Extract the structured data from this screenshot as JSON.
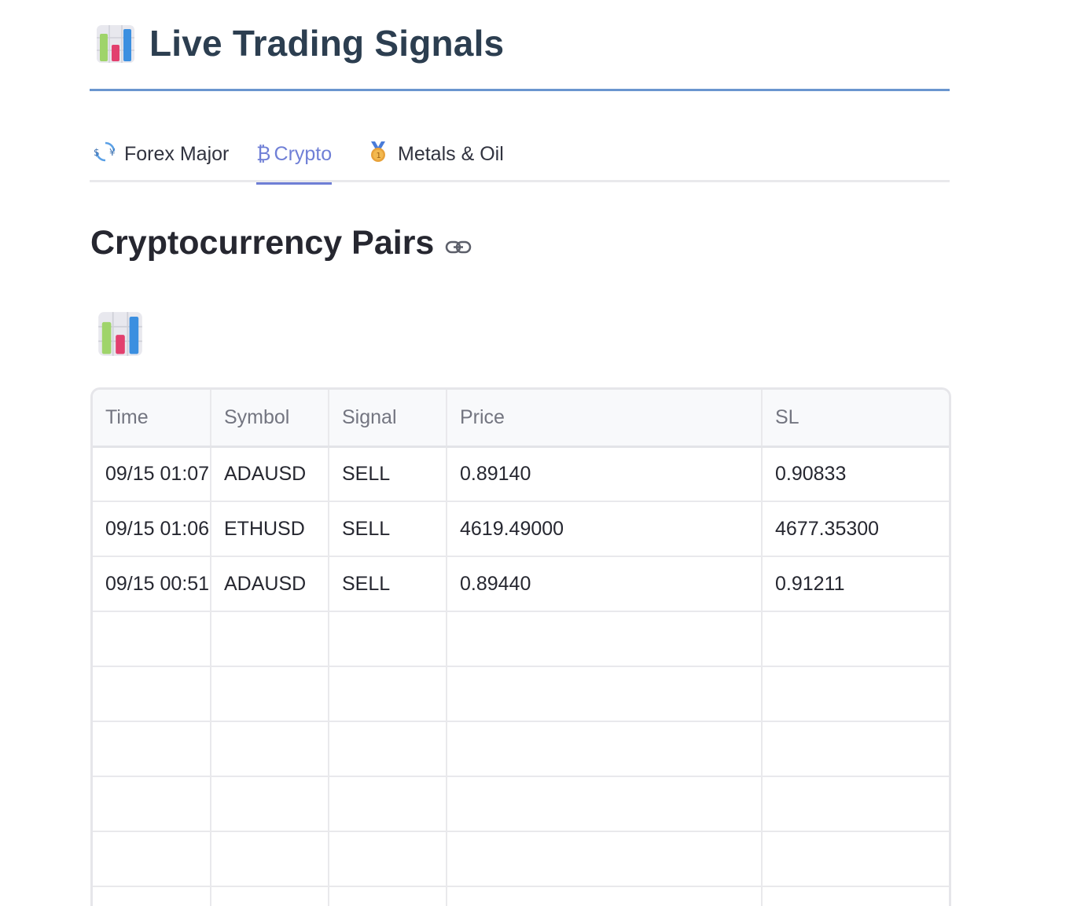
{
  "header": {
    "icon": "bar-chart-emoji",
    "title": "Live Trading Signals"
  },
  "tabs": [
    {
      "icon": "currency-exchange-icon",
      "icon_glyph": "💱",
      "label": "Forex Major",
      "active": false
    },
    {
      "icon": "bitcoin-icon",
      "icon_glyph": "₿",
      "label": "Crypto",
      "active": true
    },
    {
      "icon": "medal-icon",
      "icon_glyph": "🥇",
      "label": "Metals & Oil",
      "active": false
    }
  ],
  "section": {
    "title": "Cryptocurrency Pairs",
    "anchor_icon": "link-icon",
    "emoji": "bar-chart-emoji"
  },
  "table": {
    "columns": [
      "Time",
      "Symbol",
      "Signal",
      "Price",
      "SL"
    ],
    "rows": [
      [
        "09/15 01:07",
        "ADAUSD",
        "SELL",
        "0.89140",
        "0.90833"
      ],
      [
        "09/15 01:06",
        "ETHUSD",
        "SELL",
        "4619.49000",
        "4677.35300"
      ],
      [
        "09/15 00:51",
        "ADAUSD",
        "SELL",
        "0.89440",
        "0.91211"
      ],
      [
        "",
        "",
        "",
        "",
        ""
      ],
      [
        "",
        "",
        "",
        "",
        ""
      ],
      [
        "",
        "",
        "",
        "",
        ""
      ],
      [
        "",
        "",
        "",
        "",
        ""
      ],
      [
        "",
        "",
        "",
        "",
        ""
      ],
      [
        "",
        "",
        "",
        "",
        ""
      ]
    ]
  },
  "colors": {
    "accent": "#6f7fd6",
    "header_rule": "#6a96cf",
    "title": "#2c3e50"
  }
}
